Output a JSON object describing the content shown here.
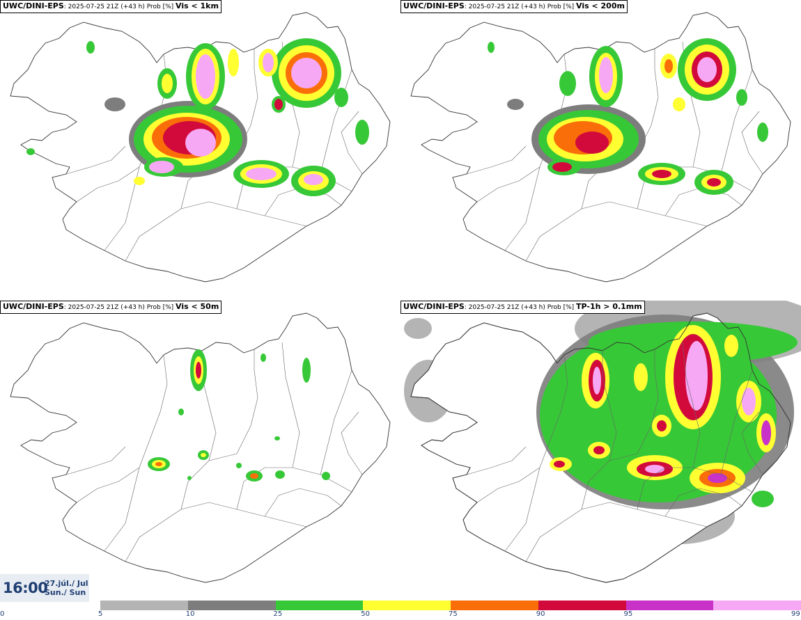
{
  "panels": [
    {
      "model": "UWC/DINI-EPS",
      "info": ": 2025-07-25 21Z (+43 h) Prob [%] ",
      "threshold": "Vis < 1km"
    },
    {
      "model": "UWC/DINI-EPS",
      "info": ": 2025-07-25 21Z (+43 h) Prob [%] ",
      "threshold": "Vis < 200m"
    },
    {
      "model": "UWC/DINI-EPS",
      "info": ": 2025-07-25 21Z (+43 h) Prob [%] ",
      "threshold": "Vis < 50m"
    },
    {
      "model": "UWC/DINI-EPS",
      "info": ": 2025-07-25 21Z (+43 h) Prob [%] ",
      "threshold": "TP-1h > 0.1mm"
    }
  ],
  "time": {
    "clock": "16:00",
    "date_line1": "27.júl./ Jul",
    "date_line2": "Sun./ Sun"
  },
  "legend": {
    "ticks": [
      "0",
      "5",
      "10",
      "25",
      "50",
      "75",
      "90",
      "95",
      "99"
    ],
    "colors": [
      "#b4b4b4",
      "#7d7d7d",
      "#37c837",
      "#ffff32",
      "#fa6e0a",
      "#d20a3c",
      "#c832c8",
      "#f7a8f5"
    ]
  }
}
